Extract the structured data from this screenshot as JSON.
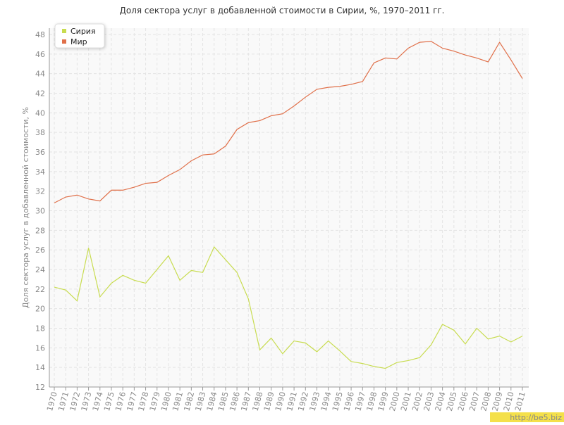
{
  "chart_data": {
    "type": "line",
    "title": "Доля сектора услуг в добавленной стоимости в Сирии, %, 1970–2011 гг.",
    "y_label": "Доля сектора услуг в добавленной стоимости, %",
    "categories": [
      "1970",
      "1971",
      "1972",
      "1973",
      "1974",
      "1975",
      "1976",
      "1977",
      "1978",
      "1979",
      "1980",
      "1981",
      "1982",
      "1983",
      "1984",
      "1985",
      "1986",
      "1987",
      "1988",
      "1989",
      "1990",
      "1991",
      "1992",
      "1993",
      "1994",
      "1995",
      "1996",
      "1997",
      "1998",
      "1999",
      "2000",
      "2001",
      "2002",
      "2003",
      "2004",
      "2005",
      "2006",
      "2007",
      "2008",
      "2009",
      "2010",
      "2011"
    ],
    "series": [
      {
        "name": "Сирия",
        "color": "#c8dc50",
        "values": [
          22.2,
          21.9,
          20.8,
          26.2,
          21.2,
          22.6,
          23.4,
          22.9,
          22.6,
          24.0,
          25.4,
          22.9,
          23.9,
          23.7,
          26.3,
          25.0,
          23.7,
          21.0,
          15.8,
          17.0,
          15.4,
          16.7,
          16.5,
          15.6,
          16.7,
          15.7,
          14.6,
          14.4,
          14.1,
          13.9,
          14.5,
          14.7,
          15.0,
          16.3,
          18.4,
          17.8,
          16.4,
          18.0,
          16.9,
          17.2,
          16.6,
          17.2
        ]
      },
      {
        "name": "Мир",
        "color": "#e0704a",
        "values": [
          30.8,
          31.4,
          31.6,
          31.2,
          31.0,
          32.1,
          32.1,
          32.4,
          32.8,
          32.9,
          33.6,
          34.2,
          35.1,
          35.7,
          35.8,
          36.6,
          38.3,
          39.0,
          39.2,
          39.7,
          39.9,
          40.7,
          41.6,
          42.4,
          42.6,
          42.7,
          42.9,
          43.2,
          45.1,
          45.6,
          45.5,
          46.6,
          47.2,
          47.3,
          46.6,
          46.3,
          45.9,
          45.6,
          45.2,
          47.2,
          45.4,
          43.5
        ]
      }
    ],
    "ylim": [
      12,
      48
    ],
    "yticks": [
      12,
      14,
      16,
      18,
      20,
      22,
      24,
      26,
      28,
      30,
      32,
      34,
      36,
      38,
      40,
      42,
      44,
      46,
      48
    ],
    "grid": true,
    "legend": "top-left",
    "watermark": "http://be5.biz"
  }
}
